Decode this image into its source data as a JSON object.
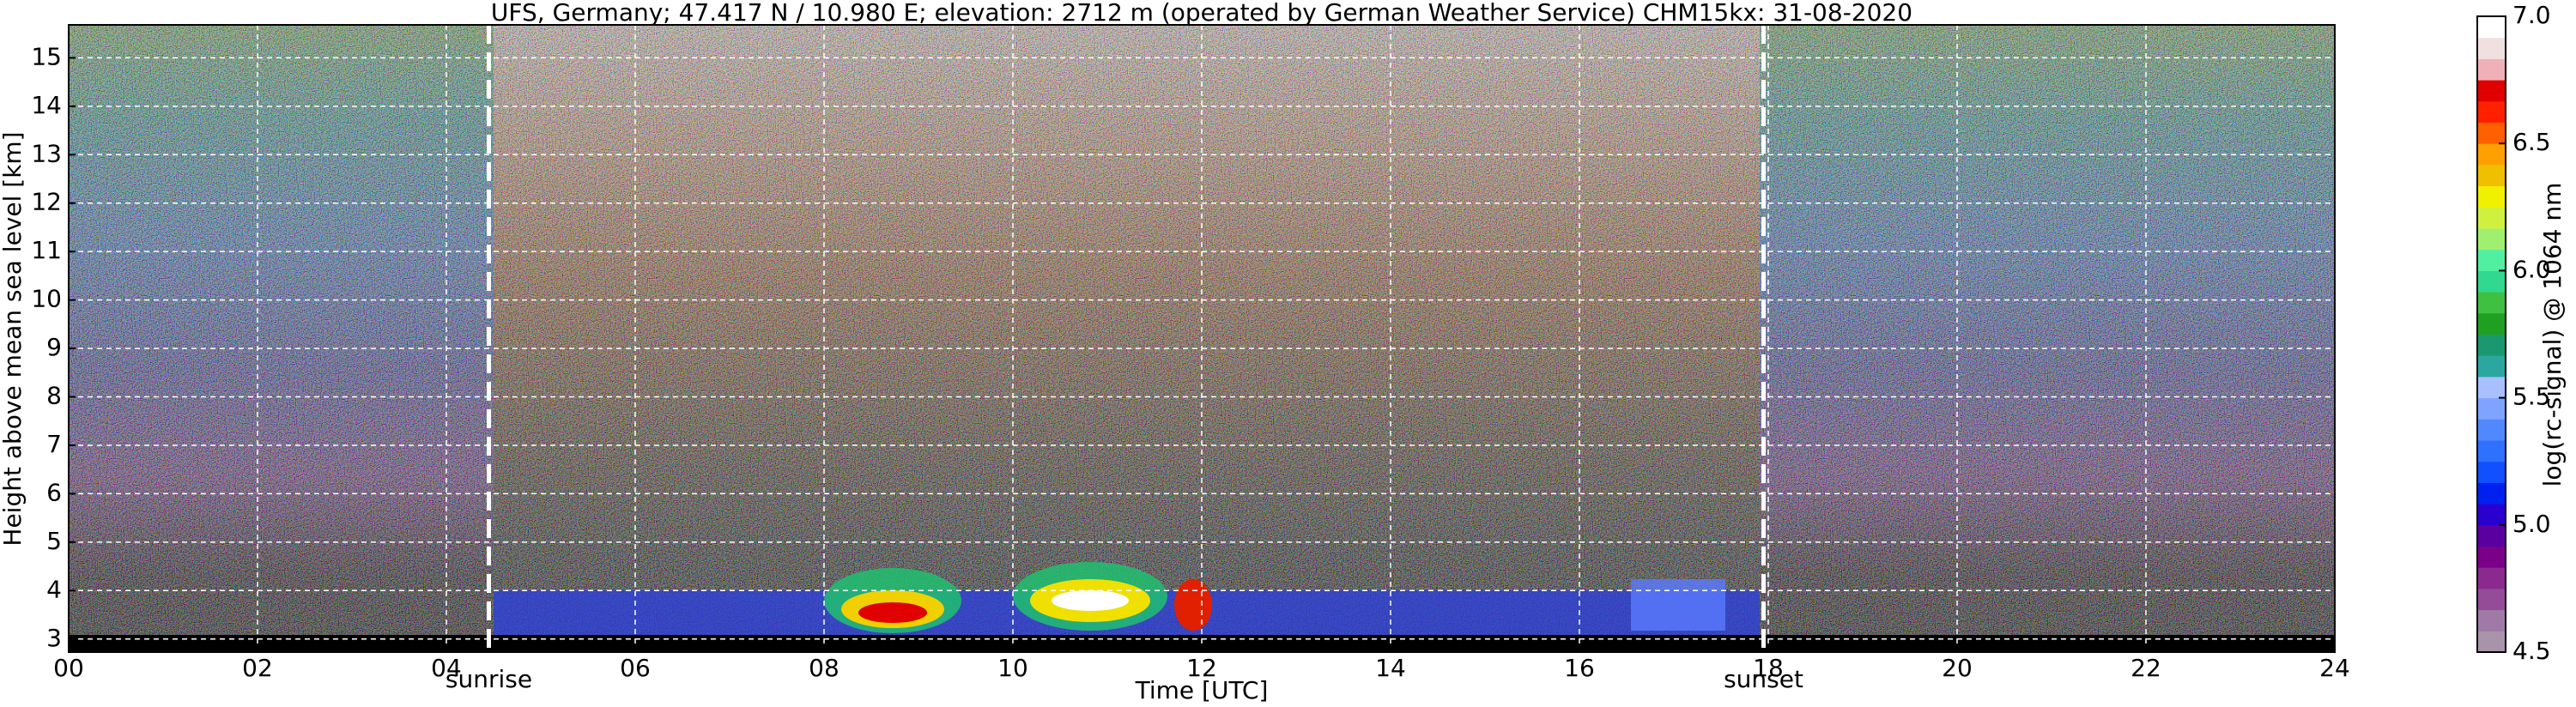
{
  "chart_data": {
    "type": "heatmap",
    "title": "UFS, Germany; 47.417 N / 10.980 E; elevation: 2712 m  (operated by German Weather Service)    CHM15kx: 31-08-2020",
    "xlabel": "Time [UTC]",
    "ylabel": "Height above mean sea level [km]",
    "colorbar_label": "log(rc-signal) @ 1064 nm",
    "xlim": [
      0,
      24
    ],
    "xticks": [
      {
        "value": 0,
        "label": "00"
      },
      {
        "value": 2,
        "label": "02"
      },
      {
        "value": 4,
        "label": "04"
      },
      {
        "value": 6,
        "label": "06"
      },
      {
        "value": 8,
        "label": "08"
      },
      10,
      12,
      14,
      16,
      18,
      20,
      22,
      24
    ],
    "ylim": [
      2.73,
      15.68
    ],
    "yticks": [
      3,
      4,
      5,
      6,
      7,
      8,
      9,
      10,
      11,
      12,
      13,
      14,
      15
    ],
    "grid": true,
    "clim": [
      4.5,
      7.0
    ],
    "cticks": [
      4.5,
      {
        "value": 5.0,
        "label": "5.0"
      },
      5.5,
      {
        "value": 6.0,
        "label": "6.0"
      },
      6.5,
      {
        "value": 7.0,
        "label": "7.0"
      }
    ],
    "colormap": [
      "#a894a8",
      "#a07aa6",
      "#944c98",
      "#8a2a8e",
      "#7a008a",
      "#5a00a0",
      "#2a00d0",
      "#0020f0",
      "#1050ff",
      "#3070ff",
      "#5088ff",
      "#7fa4ff",
      "#a8c0ff",
      "#2aa8a0",
      "#1a9870",
      "#20a020",
      "#40c040",
      "#30d890",
      "#50f0a0",
      "#a0f070",
      "#d0f040",
      "#f0f000",
      "#f0c000",
      "#ffa000",
      "#ff6000",
      "#ff2000",
      "#e00000",
      "#f0b0b8",
      "#f0e0e0",
      "#ffffff"
    ],
    "annotations": [
      {
        "text": "sunrise",
        "x": 4.45
      },
      {
        "text": "sunset",
        "x": 17.95
      }
    ]
  }
}
